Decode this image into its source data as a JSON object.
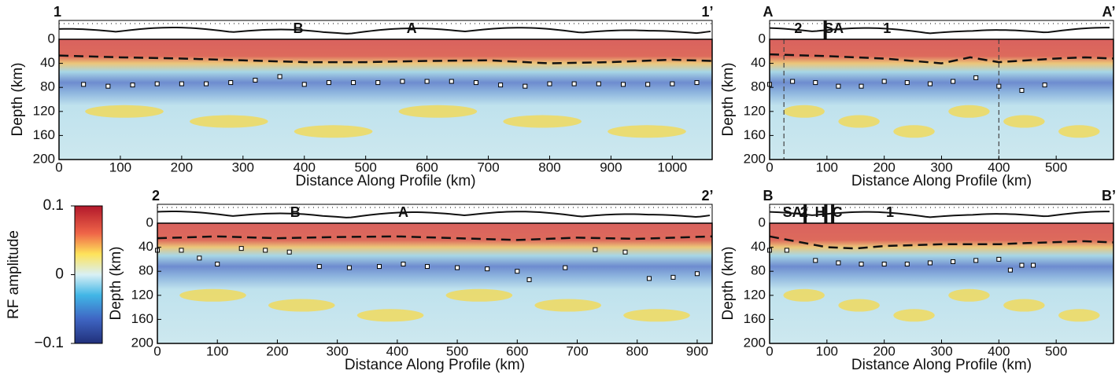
{
  "chart_data": [
    {
      "type": "section",
      "corner_labels": [
        "1",
        "1’"
      ],
      "xlabel": "Distance Along Profile (km)",
      "ylabel": "Depth (km)",
      "xlim": [
        0,
        1065
      ],
      "xticks": [
        0,
        100,
        200,
        300,
        400,
        500,
        600,
        700,
        800,
        900,
        1000
      ],
      "ylim": [
        200,
        0
      ],
      "yticks": [
        0,
        40,
        80,
        120,
        160,
        200
      ],
      "annotations": [
        {
          "text": "B",
          "x": 390,
          "color": "#888888"
        },
        {
          "text": "A",
          "x": 575,
          "color": "#888888"
        }
      ],
      "moho": {
        "x": [
          0,
          100,
          200,
          300,
          400,
          500,
          600,
          700,
          800,
          900,
          1000,
          1065
        ],
        "values": [
          27,
          30,
          32,
          35,
          38,
          38,
          36,
          35,
          40,
          38,
          34,
          36
        ]
      },
      "lab": {
        "x": [
          40,
          80,
          120,
          160,
          200,
          240,
          280,
          320,
          360,
          400,
          440,
          480,
          520,
          560,
          600,
          640,
          680,
          720,
          760,
          800,
          840,
          880,
          920,
          960,
          1000,
          1040
        ],
        "values": [
          75,
          78,
          76,
          74,
          74,
          74,
          72,
          68,
          62,
          75,
          72,
          72,
          72,
          70,
          70,
          70,
          72,
          76,
          78,
          74,
          74,
          74,
          75,
          75,
          74,
          72
        ]
      }
    },
    {
      "type": "section",
      "corner_labels": [
        "A",
        "A’"
      ],
      "xlabel": "Distance Along Profile (km)",
      "ylabel": "Depth (km)",
      "xlim": [
        0,
        600
      ],
      "xticks": [
        0,
        100,
        200,
        300,
        400,
        500
      ],
      "ylim": [
        200,
        0
      ],
      "yticks": [
        0,
        40,
        80,
        120,
        160,
        200
      ],
      "vlines": [
        25,
        400
      ],
      "annotations": [
        {
          "text": "2",
          "x": 50,
          "color": "#888888"
        },
        {
          "text": "SA",
          "x": 112,
          "color": "#222222",
          "bar": 97
        },
        {
          "text": "1",
          "x": 205,
          "color": "#888888"
        }
      ],
      "moho": {
        "x": [
          0,
          100,
          200,
          300,
          350,
          400,
          450,
          500,
          550,
          600
        ],
        "values": [
          25,
          28,
          32,
          40,
          30,
          38,
          35,
          32,
          30,
          32
        ]
      },
      "lab": {
        "x": [
          0,
          40,
          80,
          120,
          160,
          200,
          240,
          280,
          320,
          360,
          400,
          440,
          480
        ],
        "values": [
          75,
          70,
          72,
          78,
          78,
          70,
          72,
          74,
          70,
          64,
          78,
          85,
          76
        ]
      }
    },
    {
      "type": "section",
      "corner_labels": [
        "2",
        "2’"
      ],
      "xlabel": "Distance Along Profile (km)",
      "ylabel": "Depth (km)",
      "xlim": [
        0,
        925
      ],
      "xticks": [
        0,
        100,
        200,
        300,
        400,
        500,
        600,
        700,
        800,
        900
      ],
      "ylim": [
        200,
        0
      ],
      "yticks": [
        0,
        40,
        80,
        120,
        160,
        200
      ],
      "annotations": [
        {
          "text": "B",
          "x": 230,
          "color": "#888888"
        },
        {
          "text": "A",
          "x": 410,
          "color": "#888888"
        }
      ],
      "moho": {
        "x": [
          0,
          100,
          200,
          300,
          400,
          500,
          600,
          700,
          800,
          925
        ],
        "values": [
          25,
          22,
          25,
          23,
          22,
          25,
          28,
          24,
          26,
          22
        ]
      },
      "lab": {
        "x": [
          0,
          40,
          70,
          100,
          140,
          180,
          220,
          270,
          320,
          370,
          410,
          450,
          500,
          550,
          600,
          620,
          680,
          730,
          780,
          820,
          860,
          900
        ],
        "values": [
          45,
          45,
          58,
          68,
          42,
          45,
          48,
          72,
          74,
          72,
          68,
          72,
          74,
          76,
          80,
          94,
          74,
          44,
          48,
          92,
          90,
          84
        ]
      }
    },
    {
      "type": "section",
      "corner_labels": [
        "B",
        "B’"
      ],
      "xlabel": "Distance Along Profile (km)",
      "ylabel": "Depth (km)",
      "xlim": [
        0,
        600
      ],
      "xticks": [
        0,
        100,
        200,
        300,
        400,
        500
      ],
      "ylim": [
        200,
        0
      ],
      "yticks": [
        0,
        40,
        80,
        120,
        160,
        200
      ],
      "annotations": [
        {
          "text": "SA",
          "x": 40,
          "color": "#222222",
          "bar": 62
        },
        {
          "text": "2",
          "x": 60,
          "color": "#888888"
        },
        {
          "text": "H",
          "x": 88,
          "color": "#222222",
          "bar": 98
        },
        {
          "text": "C",
          "x": 118,
          "color": "#222222",
          "bar": 110
        },
        {
          "text": "1",
          "x": 210,
          "color": "#888888"
        }
      ],
      "moho": {
        "x": [
          0,
          100,
          150,
          200,
          300,
          400,
          450,
          550,
          600
        ],
        "values": [
          22,
          40,
          42,
          38,
          35,
          35,
          33,
          30,
          32
        ]
      },
      "lab": {
        "x": [
          0,
          30,
          80,
          120,
          160,
          200,
          240,
          280,
          320,
          360,
          400,
          420,
          440,
          460
        ],
        "values": [
          45,
          45,
          62,
          66,
          68,
          68,
          68,
          66,
          64,
          62,
          60,
          78,
          70,
          70
        ]
      }
    },
    {
      "type": "colorbar",
      "label": "RF amplitude",
      "ylim": [
        -0.1,
        0.1
      ],
      "yticks": [
        {
          "value": -0.1,
          "label": "−0.1"
        },
        0,
        0.1
      ]
    }
  ]
}
